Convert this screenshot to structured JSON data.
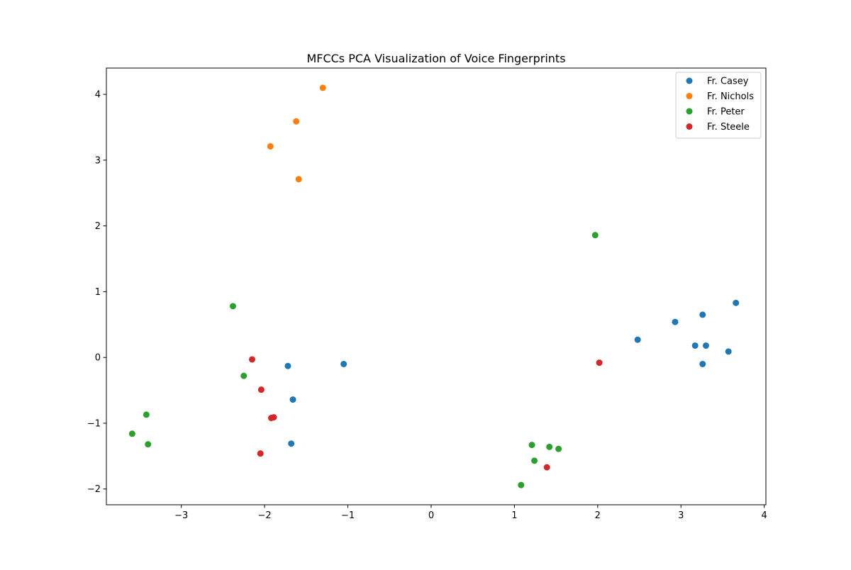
{
  "chart_data": {
    "type": "scatter",
    "title": "MFCCs PCA Visualization of Voice Fingerprints",
    "xlabel": "",
    "ylabel": "",
    "xlim": [
      -3.9,
      4.02
    ],
    "ylim": [
      -2.24,
      4.4
    ],
    "xticks": [
      -3,
      -2,
      -1,
      0,
      1,
      2,
      3,
      4
    ],
    "xtick_labels": [
      "−3",
      "−2",
      "−1",
      "0",
      "1",
      "2",
      "3",
      "4"
    ],
    "yticks": [
      -2,
      -1,
      0,
      1,
      2,
      3,
      4
    ],
    "ytick_labels": [
      "−2",
      "−1",
      "0",
      "1",
      "2",
      "3",
      "4"
    ],
    "grid": false,
    "legend_position": "top-right",
    "series": [
      {
        "name": "Fr. Casey",
        "color": "#1f77b4",
        "points": [
          [
            3.66,
            0.83
          ],
          [
            3.26,
            0.65
          ],
          [
            2.93,
            0.54
          ],
          [
            2.48,
            0.27
          ],
          [
            3.17,
            0.18
          ],
          [
            3.3,
            0.18
          ],
          [
            3.57,
            0.09
          ],
          [
            3.26,
            -0.1
          ],
          [
            -1.05,
            -0.1
          ],
          [
            -1.72,
            -0.13
          ],
          [
            -1.66,
            -0.64
          ],
          [
            -1.68,
            -1.31
          ]
        ]
      },
      {
        "name": "Fr. Nichols",
        "color": "#ff7f0e",
        "points": [
          [
            -1.3,
            4.1
          ],
          [
            -1.62,
            3.59
          ],
          [
            -1.93,
            3.21
          ],
          [
            -1.59,
            2.71
          ]
        ]
      },
      {
        "name": "Fr. Peter",
        "color": "#2ca02c",
        "points": [
          [
            1.97,
            1.86
          ],
          [
            -2.38,
            0.78
          ],
          [
            -2.25,
            -0.28
          ],
          [
            -3.42,
            -0.87
          ],
          [
            -3.59,
            -1.16
          ],
          [
            -3.4,
            -1.32
          ],
          [
            1.21,
            -1.33
          ],
          [
            1.42,
            -1.36
          ],
          [
            1.53,
            -1.39
          ],
          [
            1.24,
            -1.57
          ],
          [
            1.08,
            -1.94
          ]
        ]
      },
      {
        "name": "Fr. Steele",
        "color": "#d62728",
        "points": [
          [
            -2.15,
            -0.03
          ],
          [
            -2.04,
            -0.49
          ],
          [
            -1.92,
            -0.92
          ],
          [
            -1.89,
            -0.91
          ],
          [
            -2.05,
            -1.46
          ],
          [
            2.02,
            -0.08
          ],
          [
            1.39,
            -1.67
          ]
        ]
      }
    ]
  }
}
